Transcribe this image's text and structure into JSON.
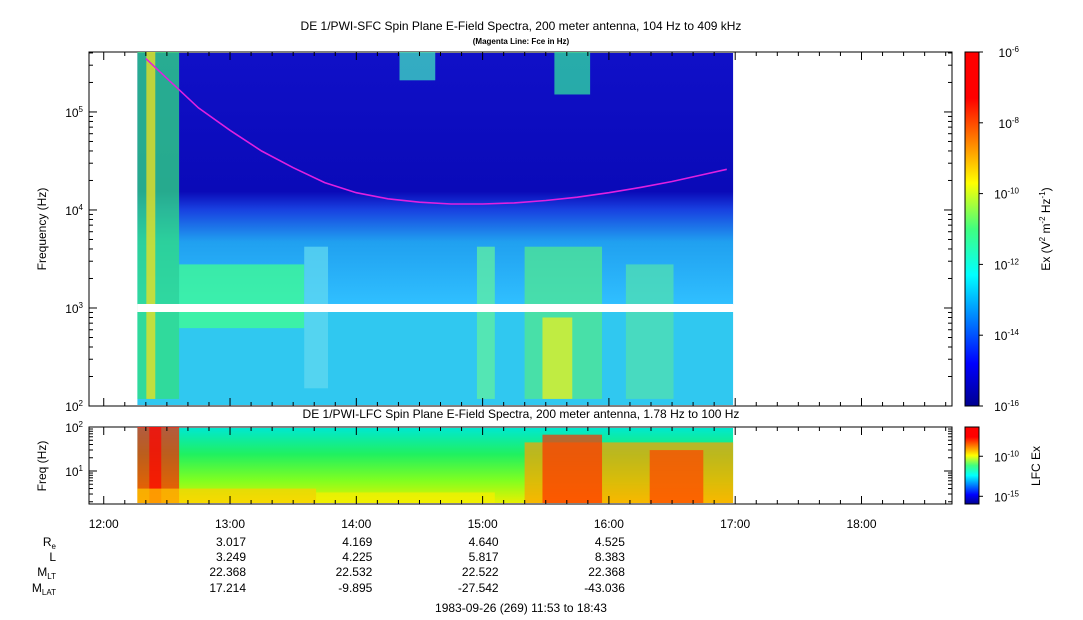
{
  "chart_data": [
    {
      "type": "heatmap",
      "title": "DE 1/PWI-SFC  Spin Plane E-Field Spectra, 200 meter antenna, 104 Hz to 409 kHz",
      "subtitle": "(Magenta Line: Fce in Hz)",
      "ylabel": "Frequency (Hz)",
      "yscale": "log",
      "ylim": [
        100,
        409000
      ],
      "yticks": [
        "10^2",
        "10^3",
        "10^4",
        "10^5"
      ],
      "xlim": [
        "11:53",
        "18:43"
      ],
      "data_time_range": [
        "12:16",
        "16:59"
      ],
      "gap_frequency_hz": 1000,
      "colorbar": {
        "label": "Ex (V^2 m^-2 Hz^-1)",
        "scale": "log",
        "range": [
          1e-16,
          1e-06
        ],
        "ticks": [
          "10^-6",
          "10^-8",
          "10^-10",
          "10^-12",
          "10^-14",
          "10^-16"
        ]
      },
      "series": [
        {
          "name": "Fce",
          "color": "#e020e0",
          "x": [
            "12:20",
            "12:45",
            "13:00",
            "13:15",
            "13:30",
            "13:45",
            "14:00",
            "14:15",
            "14:30",
            "14:45",
            "15:00",
            "15:15",
            "15:30",
            "15:45",
            "16:00",
            "16:15",
            "16:30",
            "16:45",
            "16:56"
          ],
          "y": [
            350000,
            110000,
            65000,
            40000,
            27000,
            19000,
            15000,
            13000,
            12000,
            11500,
            11500,
            11800,
            12500,
            13500,
            15000,
            17000,
            19500,
            23000,
            26000
          ]
        }
      ]
    },
    {
      "type": "heatmap",
      "title": "DE 1/PWI-LFC  Spin Plane E-Field Spectra, 200 meter antenna, 1.78 Hz to 100 Hz",
      "ylabel": "Freq (Hz)",
      "yscale": "log",
      "ylim": [
        1.78,
        100
      ],
      "yticks": [
        "10^1",
        "10^2"
      ],
      "xlim": [
        "11:53",
        "18:43"
      ],
      "data_time_range": [
        "12:16",
        "16:59"
      ],
      "colorbar": {
        "label": "LFC Ex",
        "scale": "log",
        "ticks": [
          "10^-10",
          "10^-15"
        ]
      }
    }
  ],
  "x_axis": {
    "ticks": [
      "12:00",
      "13:00",
      "14:00",
      "15:00",
      "16:00",
      "17:00",
      "18:00"
    ]
  },
  "ephemeris": {
    "rows": [
      {
        "label": "R",
        "sub": "e",
        "values": [
          "3.017",
          "4.169",
          "4.640",
          "4.525"
        ]
      },
      {
        "label": "L",
        "sub": "",
        "values": [
          "3.249",
          "4.225",
          "5.817",
          "8.383"
        ]
      },
      {
        "label": "M",
        "sub": "LT",
        "values": [
          "22.368",
          "22.532",
          "22.522",
          "22.368"
        ]
      },
      {
        "label": "M",
        "sub": "LAT",
        "values": [
          "17.214",
          "-9.895",
          "-27.542",
          "-43.036"
        ]
      }
    ]
  },
  "footer": "1983-09-26 (269) 11:53 to 18:43"
}
